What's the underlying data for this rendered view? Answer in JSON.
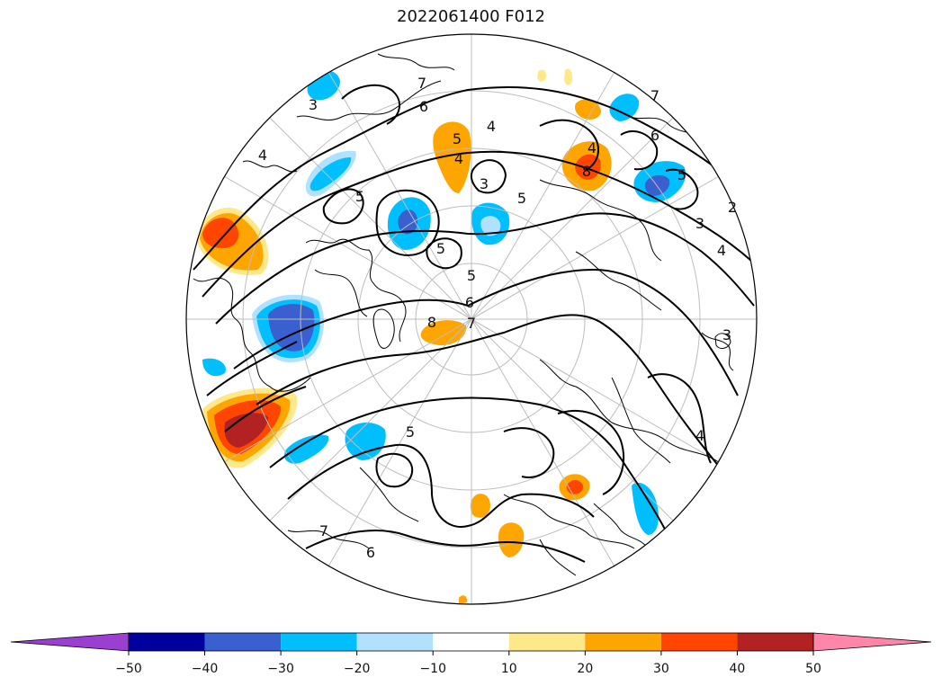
{
  "title": "2022061400 F012",
  "colors": {
    "background": "#ffffff",
    "contour": "#000000",
    "graticule": "#bdbdbd",
    "coast": "#000000"
  },
  "colorbar": {
    "ticks": [
      -50,
      -40,
      -30,
      -20,
      -10,
      10,
      20,
      30,
      40,
      50
    ],
    "under_color": "#9b3fd1",
    "over_color": "#ff86a8",
    "bins": [
      {
        "from": -50,
        "to": -40,
        "color": "#00009c"
      },
      {
        "from": -40,
        "to": -30,
        "color": "#3a5fcf"
      },
      {
        "from": -30,
        "to": -20,
        "color": "#00bfff"
      },
      {
        "from": -20,
        "to": -10,
        "color": "#b0e2ff"
      },
      {
        "from": -10,
        "to": 10,
        "color": "#ffffff"
      },
      {
        "from": 10,
        "to": 20,
        "color": "#ffe88a"
      },
      {
        "from": 20,
        "to": 30,
        "color": "#ffa500"
      },
      {
        "from": 30,
        "to": 40,
        "color": "#ff4500"
      },
      {
        "from": 40,
        "to": 50,
        "color": "#b22222"
      }
    ]
  },
  "contour_labels": [
    "5",
    "4",
    "5",
    "7",
    "6",
    "4",
    "3",
    "5",
    "6",
    "5",
    "7",
    "5",
    "4",
    "2",
    "3",
    "4",
    "8",
    "8",
    "5",
    "4",
    "7",
    "3",
    "5",
    "6",
    "7",
    "6",
    "3",
    "4"
  ]
}
